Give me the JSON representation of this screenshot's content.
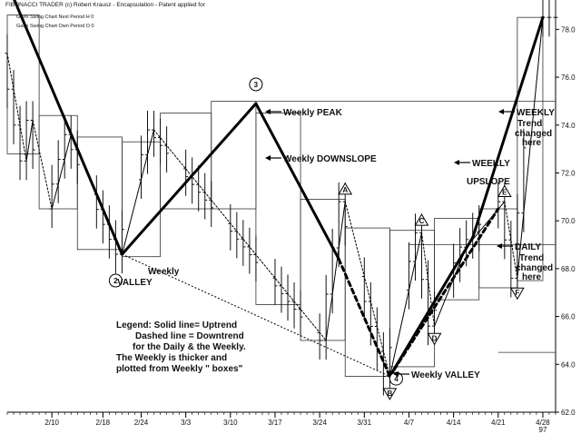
{
  "header": {
    "title": "FIBONACCI TRADER (c) Robert Krausz - Encapsulation - Patent applied for",
    "line1": "Gann Swing Chart Next Period H 0",
    "line2": "Gann Swing Chart Own Period O 0"
  },
  "chart_data": {
    "type": "line",
    "xlabel": "",
    "ylabel": "",
    "ylim": [
      62,
      79
    ],
    "xlim": [
      "1997-02-03",
      "1997-04-30"
    ],
    "x_ticks": [
      {
        "date": "1997-02-10",
        "label": "2/10"
      },
      {
        "date": "1997-02-18",
        "label": "2/18"
      },
      {
        "date": "1997-02-24",
        "label": "2/24"
      },
      {
        "date": "1997-03-03",
        "label": "3/3"
      },
      {
        "date": "1997-03-10",
        "label": "3/10"
      },
      {
        "date": "1997-03-17",
        "label": "3/17"
      },
      {
        "date": "1997-03-24",
        "label": "3/24"
      },
      {
        "date": "1997-03-31",
        "label": "3/31"
      },
      {
        "date": "1997-04-07",
        "label": "4/7"
      },
      {
        "date": "1997-04-14",
        "label": "4/14"
      },
      {
        "date": "1997-04-21",
        "label": "4/21"
      },
      {
        "date": "1997-04-28",
        "label": "4/28"
      }
    ],
    "year_label": "97",
    "y_ticks": [
      "62.0",
      "64.0",
      "66.0",
      "68.0",
      "70.0",
      "72.0",
      "74.0",
      "76.0",
      "78.0"
    ],
    "series": [
      {
        "name": "Weekly",
        "values": [
          {
            "x": "1997-02-04",
            "y": 79.3
          },
          {
            "x": "1997-02-21",
            "y": 68.6
          },
          {
            "x": "1997-03-14",
            "y": 74.9
          },
          {
            "x": "1997-03-27",
            "y": 68.4
          },
          {
            "x": "1997-04-04",
            "y": 63.5
          },
          {
            "x": "1997-04-17",
            "y": 69.3
          },
          {
            "x": "1997-04-28",
            "y": 78.5
          }
        ]
      },
      {
        "name": "Daily",
        "values": [
          {
            "x": "1997-02-03",
            "y": 77.0
          },
          {
            "x": "1997-02-06",
            "y": 72.5
          },
          {
            "x": "1997-02-07",
            "y": 74.2
          },
          {
            "x": "1997-02-10",
            "y": 70.5
          },
          {
            "x": "1997-02-13",
            "y": 73.6
          },
          {
            "x": "1997-02-21",
            "y": 68.6
          },
          {
            "x": "1997-02-26",
            "y": 73.8
          },
          {
            "x": "1997-03-25",
            "y": 65.0
          },
          {
            "x": "1997-03-28",
            "y": 70.8
          },
          {
            "x": "1997-04-04",
            "y": 63.5
          },
          {
            "x": "1997-04-09",
            "y": 69.5
          },
          {
            "x": "1997-04-11",
            "y": 65.6
          },
          {
            "x": "1997-04-16",
            "y": 68.9
          },
          {
            "x": "1997-04-22",
            "y": 70.8
          },
          {
            "x": "1997-04-24",
            "y": 67.6
          },
          {
            "x": "1997-04-28",
            "y": 78.5
          }
        ]
      }
    ],
    "weekly_boxes": [
      {
        "x0": "1997-02-03",
        "x1": "1997-02-08",
        "y0": 72.8,
        "y1": 78.6
      },
      {
        "x0": "1997-02-08",
        "x1": "1997-02-14",
        "y0": 70.5,
        "y1": 74.4
      },
      {
        "x0": "1997-02-14",
        "x1": "1997-02-21",
        "y0": 68.8,
        "y1": 73.5
      },
      {
        "x0": "1997-02-21",
        "x1": "1997-02-27",
        "y0": 68.5,
        "y1": 73.3
      },
      {
        "x0": "1997-02-27",
        "x1": "1997-03-07",
        "y0": 70.5,
        "y1": 74.5
      },
      {
        "x0": "1997-03-07",
        "x1": "1997-03-14",
        "y0": 70.5,
        "y1": 75.0
      },
      {
        "x0": "1997-03-14",
        "x1": "1997-03-21",
        "y0": 66.5,
        "y1": 74.5
      },
      {
        "x0": "1997-03-21",
        "x1": "1997-03-28",
        "y0": 65.0,
        "y1": 70.9
      },
      {
        "x0": "1997-03-28",
        "x1": "1997-04-04",
        "y0": 63.5,
        "y1": 69.7
      },
      {
        "x0": "1997-04-04",
        "x1": "1997-04-11",
        "y0": 63.9,
        "y1": 69.6
      },
      {
        "x0": "1997-04-11",
        "x1": "1997-04-18",
        "y0": 66.7,
        "y1": 70.1
      },
      {
        "x0": "1997-04-18",
        "x1": "1997-04-24",
        "y0": 67.2,
        "y1": 70.5
      },
      {
        "x0": "1997-04-24",
        "x1": "1997-04-28",
        "y0": 67.5,
        "y1": 78.5
      }
    ],
    "reference_lines": [
      {
        "y": 75.0,
        "x0": "1997-03-14"
      },
      {
        "y": 69.0,
        "x0": "1997-04-07"
      },
      {
        "y": 64.5,
        "x0": "1997-04-21"
      }
    ],
    "swing_labels": [
      {
        "label": "2",
        "x": "1997-02-20",
        "y": 67.5,
        "shape": "circle"
      },
      {
        "label": "3",
        "x": "1997-03-14",
        "y": 75.7,
        "shape": "circle"
      },
      {
        "label": "4",
        "x": "1997-04-05",
        "y": 63.4,
        "shape": "circle"
      },
      {
        "label": "A",
        "x": "1997-03-28",
        "y": 71.3,
        "shape": "triangle"
      },
      {
        "label": "B",
        "x": "1997-04-04",
        "y": 62.8,
        "shape": "triangle-down"
      },
      {
        "label": "C",
        "x": "1997-04-09",
        "y": 70.0,
        "shape": "triangle"
      },
      {
        "label": "D",
        "x": "1997-04-11",
        "y": 65.1,
        "shape": "triangle-down"
      },
      {
        "label": "E",
        "x": "1997-04-22",
        "y": 71.2,
        "shape": "triangle"
      },
      {
        "label": "F",
        "x": "1997-04-24",
        "y": 67.0,
        "shape": "triangle-down"
      }
    ],
    "annotations": [
      {
        "text": "Weekly PEAK",
        "arrow": true
      },
      {
        "text": "Weekly DOWNSLOPE",
        "arrow": true
      },
      {
        "text": "Weekly",
        "arrow": false
      },
      {
        "text": "VALLEY",
        "arrow": false
      },
      {
        "text": "Weekly VALLEY",
        "arrow": true
      },
      {
        "text": "WEEKLY",
        "arrow": true
      },
      {
        "text": "UPSLOPE",
        "arrow": false
      },
      {
        "text": "WEEKLY",
        "arrow": true
      },
      {
        "text": "Trend",
        "arrow": false
      },
      {
        "text": "changed",
        "arrow": false
      },
      {
        "text": "here",
        "arrow": false
      },
      {
        "text": "DAILY",
        "arrow": true
      },
      {
        "text": "Trend",
        "arrow": false
      },
      {
        "text": "changed",
        "arrow": false
      },
      {
        "text": "here",
        "arrow": false
      }
    ],
    "legend_text": [
      "Legend: Solid line= Uptrend",
      "Dashed line = Downtrend",
      "for the Daily & the Weekly.",
      "The Weekly is thicker and",
      "plotted from Weekly \" boxes\""
    ],
    "grid": false,
    "legend_position": "bottom-left"
  }
}
